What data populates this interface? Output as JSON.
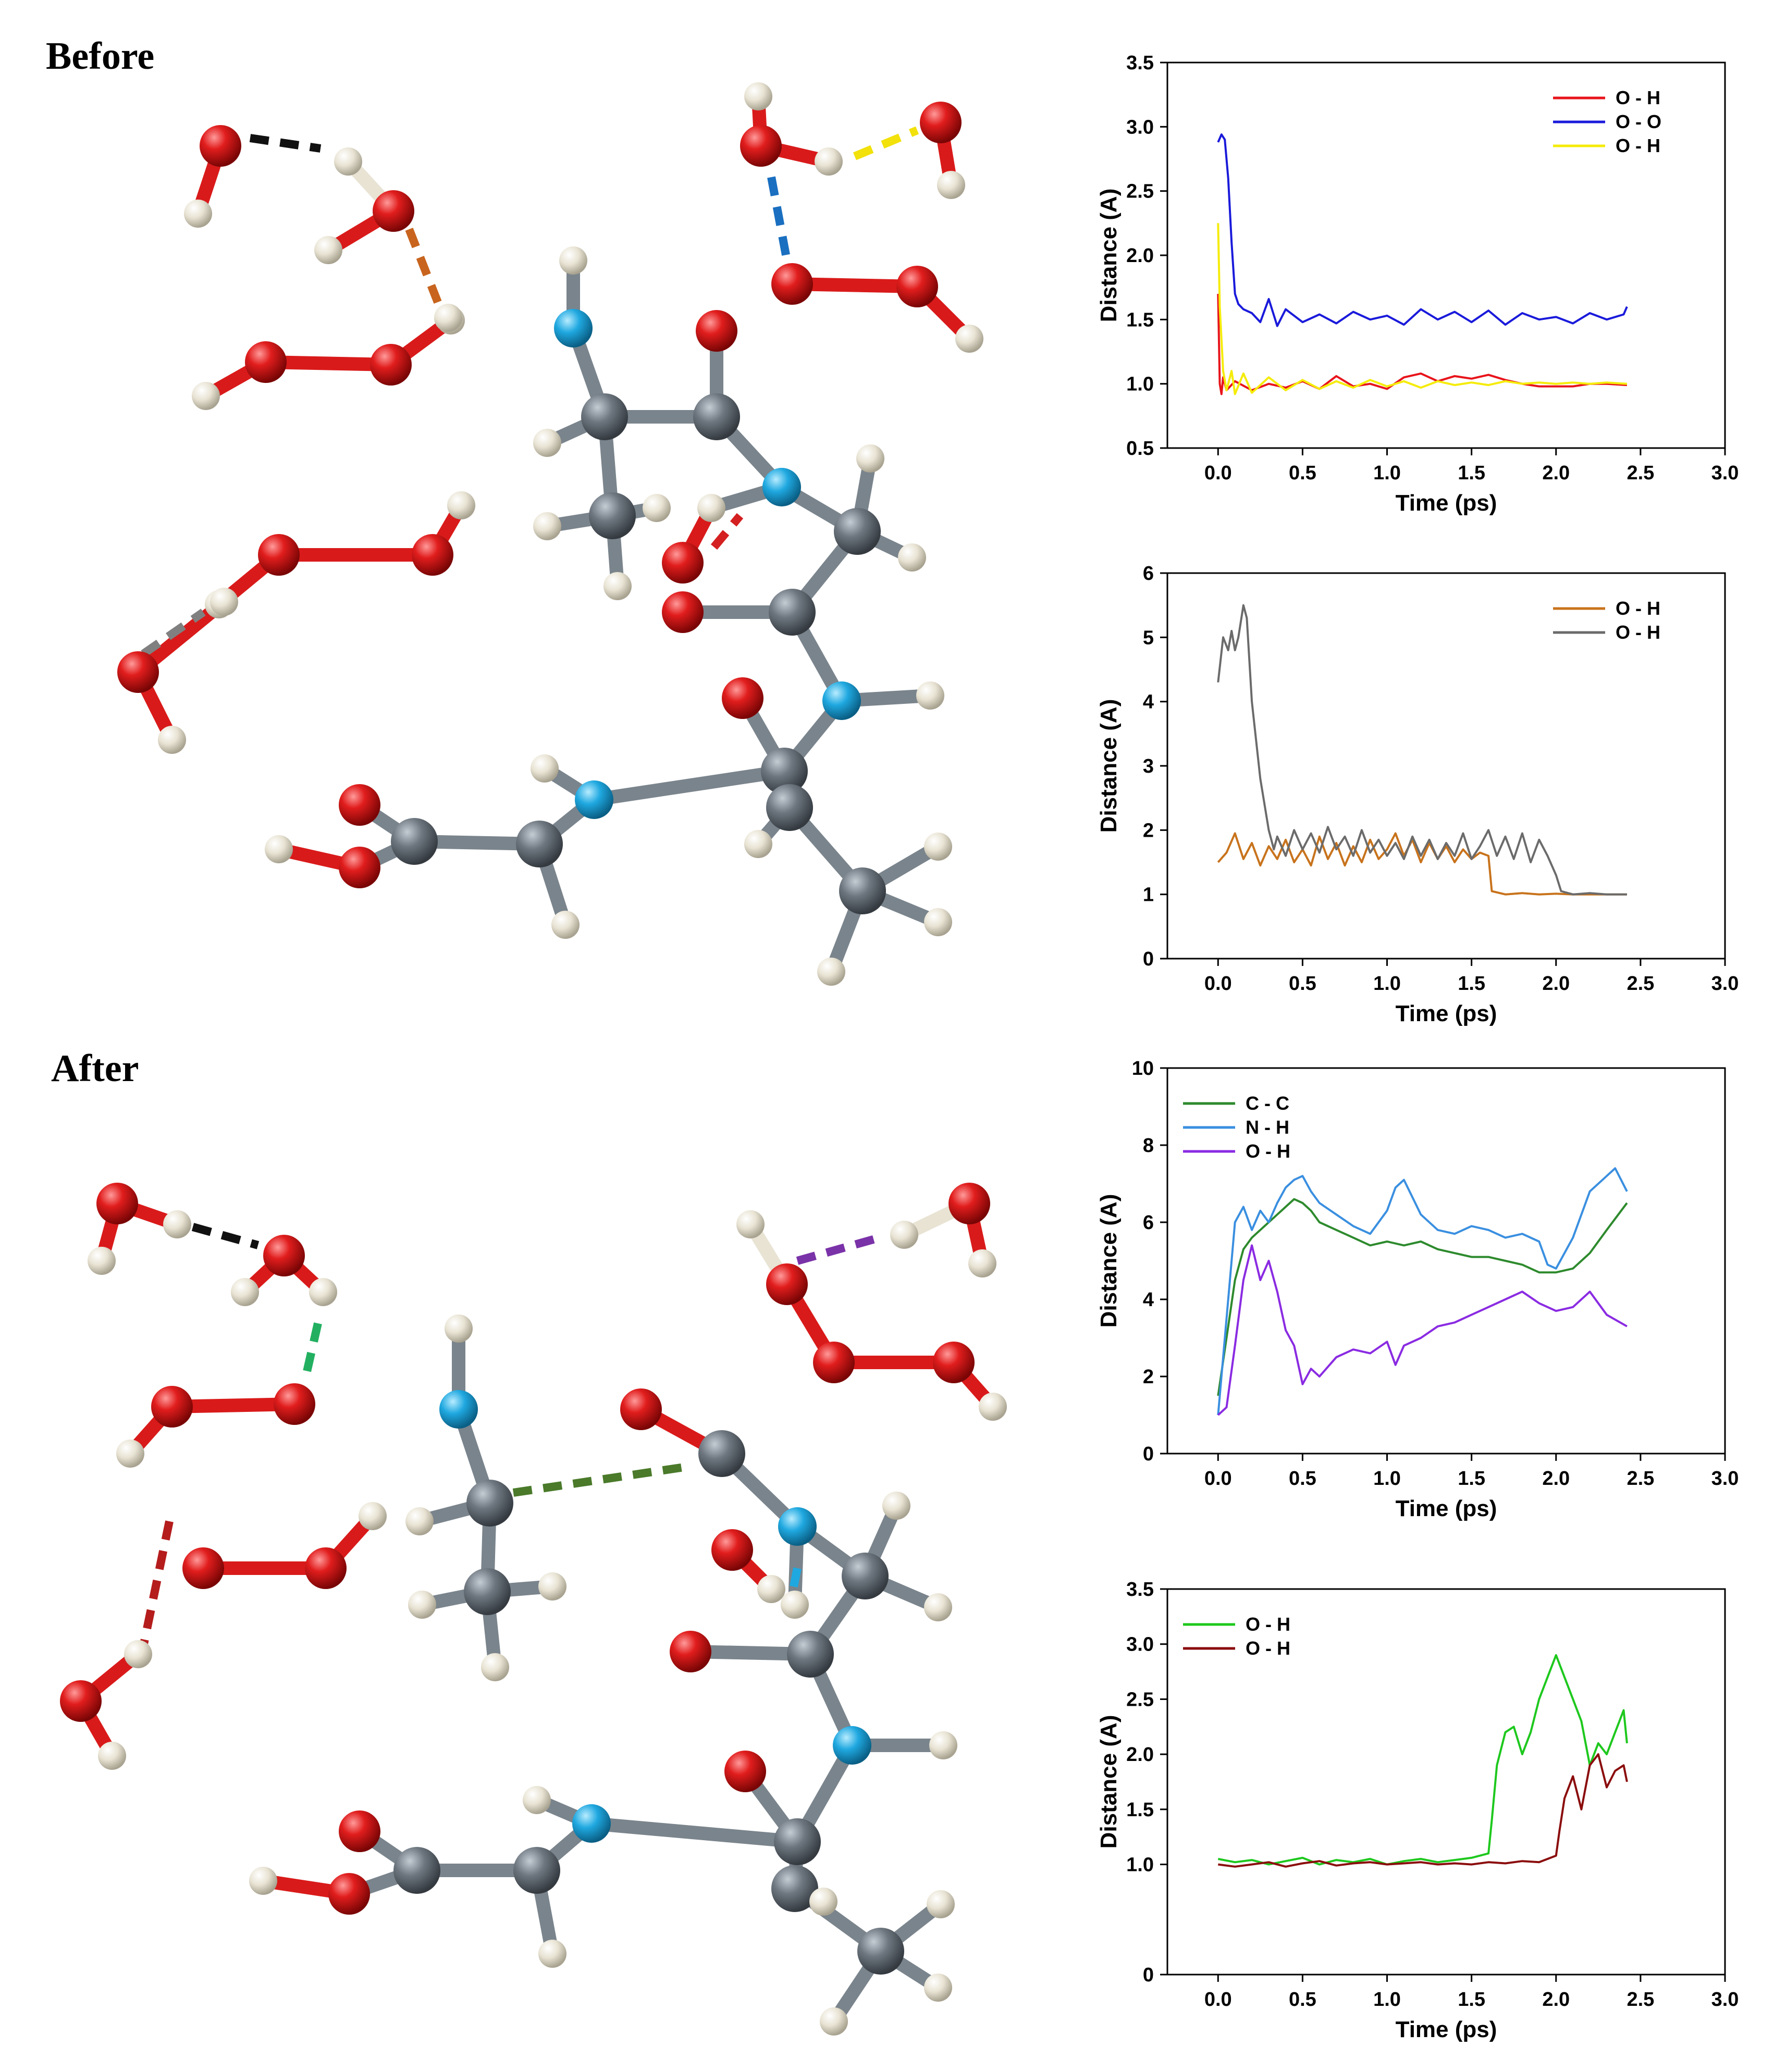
{
  "panels": {
    "before_label": "Before",
    "after_label": "After"
  },
  "atom_colors": {
    "oxygen": "#d91a1a",
    "hydrogen": "#e8e3d3",
    "carbon": "#6e7780",
    "nitrogen": "#1fa8e0",
    "bond": "#7a848c"
  },
  "chart_data": [
    {
      "type": "line",
      "xlabel": "Time (ps)",
      "ylabel": "Distance (A)",
      "xlim": [
        -0.3,
        3.0
      ],
      "ylim": [
        0.5,
        3.5
      ],
      "xticks": [
        "0.0",
        "0.5",
        "1.0",
        "1.5",
        "2.0",
        "2.5",
        "3.0"
      ],
      "yticks": [
        "0.5",
        "1.0",
        "1.5",
        "2.0",
        "2.5",
        "3.0",
        "3.5"
      ],
      "legend_position": "top-right",
      "series": [
        {
          "name": "O - H",
          "color": "#e8141b",
          "x": [
            0.0,
            0.01,
            0.02,
            0.03,
            0.05,
            0.1,
            0.2,
            0.3,
            0.4,
            0.5,
            0.6,
            0.7,
            0.8,
            0.9,
            1.0,
            1.1,
            1.2,
            1.3,
            1.4,
            1.5,
            1.6,
            1.7,
            1.8,
            1.9,
            2.0,
            2.1,
            2.2,
            2.3,
            2.42
          ],
          "y": [
            1.7,
            1.0,
            0.92,
            1.05,
            0.95,
            1.02,
            0.95,
            1.0,
            0.97,
            1.02,
            0.96,
            1.06,
            0.98,
            1.0,
            0.96,
            1.05,
            1.08,
            1.02,
            1.06,
            1.04,
            1.07,
            1.03,
            1.0,
            0.98,
            0.98,
            0.98,
            1.0,
            1.0,
            0.99
          ]
        },
        {
          "name": "O - O",
          "color": "#1a1adb",
          "x": [
            0.0,
            0.02,
            0.04,
            0.06,
            0.08,
            0.1,
            0.12,
            0.15,
            0.2,
            0.25,
            0.3,
            0.35,
            0.4,
            0.5,
            0.6,
            0.7,
            0.8,
            0.9,
            1.0,
            1.1,
            1.2,
            1.3,
            1.4,
            1.5,
            1.6,
            1.7,
            1.8,
            1.9,
            2.0,
            2.1,
            2.2,
            2.3,
            2.4,
            2.42
          ],
          "y": [
            2.88,
            2.94,
            2.9,
            2.6,
            2.1,
            1.7,
            1.62,
            1.58,
            1.55,
            1.48,
            1.66,
            1.45,
            1.58,
            1.48,
            1.54,
            1.47,
            1.56,
            1.5,
            1.53,
            1.46,
            1.58,
            1.5,
            1.56,
            1.48,
            1.57,
            1.46,
            1.55,
            1.5,
            1.52,
            1.47,
            1.55,
            1.5,
            1.54,
            1.6
          ]
        },
        {
          "name": "O - H",
          "color": "#f5ec0a",
          "x": [
            0.0,
            0.01,
            0.03,
            0.05,
            0.08,
            0.1,
            0.15,
            0.2,
            0.3,
            0.4,
            0.5,
            0.6,
            0.7,
            0.8,
            0.9,
            1.0,
            1.1,
            1.2,
            1.3,
            1.4,
            1.5,
            1.6,
            1.7,
            1.8,
            1.9,
            2.0,
            2.1,
            2.2,
            2.3,
            2.42
          ],
          "y": [
            2.25,
            1.6,
            1.1,
            0.95,
            1.1,
            0.92,
            1.08,
            0.93,
            1.05,
            0.95,
            1.03,
            0.96,
            1.02,
            0.97,
            1.03,
            0.98,
            1.02,
            0.97,
            1.02,
            0.99,
            1.01,
            0.99,
            1.02,
            1.0,
            1.01,
            1.0,
            1.01,
            1.0,
            1.01,
            1.0
          ]
        }
      ]
    },
    {
      "type": "line",
      "xlabel": "Time (ps)",
      "ylabel": "Distance (A)",
      "xlim": [
        -0.3,
        3.0
      ],
      "ylim": [
        0,
        6
      ],
      "xticks": [
        "0.0",
        "0.5",
        "1.0",
        "1.5",
        "2.0",
        "2.5",
        "3.0"
      ],
      "yticks": [
        "0",
        "1",
        "2",
        "3",
        "4",
        "5",
        "6"
      ],
      "legend_position": "top-right",
      "series": [
        {
          "name": "O - H",
          "color": "#c8731c",
          "x": [
            0.0,
            0.05,
            0.1,
            0.15,
            0.2,
            0.25,
            0.3,
            0.35,
            0.4,
            0.45,
            0.5,
            0.55,
            0.6,
            0.65,
            0.7,
            0.75,
            0.8,
            0.85,
            0.9,
            0.95,
            1.0,
            1.05,
            1.1,
            1.15,
            1.2,
            1.25,
            1.3,
            1.35,
            1.4,
            1.45,
            1.5,
            1.55,
            1.6,
            1.62,
            1.7,
            1.8,
            1.9,
            2.0,
            2.1,
            2.2,
            2.3,
            2.42
          ],
          "y": [
            1.5,
            1.65,
            1.95,
            1.55,
            1.8,
            1.45,
            1.75,
            1.55,
            1.85,
            1.5,
            1.7,
            1.45,
            1.9,
            1.55,
            1.8,
            1.45,
            1.75,
            1.5,
            1.85,
            1.55,
            1.7,
            1.95,
            1.6,
            1.85,
            1.5,
            1.8,
            1.55,
            1.75,
            1.5,
            1.7,
            1.55,
            1.65,
            1.6,
            1.05,
            1.0,
            1.02,
            1.0,
            1.01,
            1.0,
            1.0,
            1.0,
            1.0
          ]
        },
        {
          "name": "O - H",
          "color": "#6b6b6b",
          "x": [
            0.0,
            0.03,
            0.06,
            0.08,
            0.1,
            0.12,
            0.15,
            0.17,
            0.2,
            0.25,
            0.3,
            0.33,
            0.35,
            0.4,
            0.45,
            0.5,
            0.55,
            0.6,
            0.65,
            0.7,
            0.75,
            0.8,
            0.85,
            0.9,
            0.95,
            1.0,
            1.05,
            1.1,
            1.15,
            1.2,
            1.25,
            1.3,
            1.35,
            1.4,
            1.45,
            1.5,
            1.55,
            1.6,
            1.65,
            1.7,
            1.75,
            1.8,
            1.85,
            1.9,
            1.95,
            2.0,
            2.03,
            2.1,
            2.2,
            2.3,
            2.42
          ],
          "y": [
            4.3,
            5.0,
            4.8,
            5.1,
            4.8,
            5.0,
            5.5,
            5.3,
            4.0,
            2.8,
            2.0,
            1.7,
            1.9,
            1.6,
            2.0,
            1.7,
            1.95,
            1.65,
            2.05,
            1.7,
            1.9,
            1.6,
            2.0,
            1.65,
            1.85,
            1.6,
            1.8,
            1.55,
            1.9,
            1.6,
            1.85,
            1.55,
            1.8,
            1.6,
            1.95,
            1.55,
            1.75,
            2.0,
            1.6,
            1.9,
            1.55,
            1.95,
            1.5,
            1.85,
            1.6,
            1.3,
            1.05,
            1.0,
            1.02,
            1.0,
            1.0
          ]
        }
      ]
    },
    {
      "type": "line",
      "xlabel": "Time (ps)",
      "ylabel": "Distance (A)",
      "xlim": [
        -0.3,
        3.0
      ],
      "ylim": [
        0,
        10
      ],
      "xticks": [
        "0.0",
        "0.5",
        "1.0",
        "1.5",
        "2.0",
        "2.5",
        "3.0"
      ],
      "yticks": [
        "0",
        "2",
        "4",
        "6",
        "8",
        "10"
      ],
      "legend_position": "top-left",
      "series": [
        {
          "name": "C - C",
          "color": "#2d8a2d",
          "x": [
            0.0,
            0.05,
            0.1,
            0.15,
            0.2,
            0.25,
            0.3,
            0.35,
            0.4,
            0.45,
            0.5,
            0.55,
            0.6,
            0.7,
            0.8,
            0.9,
            1.0,
            1.1,
            1.2,
            1.3,
            1.4,
            1.5,
            1.6,
            1.7,
            1.8,
            1.9,
            2.0,
            2.1,
            2.2,
            2.3,
            2.42
          ],
          "y": [
            1.5,
            3.0,
            4.5,
            5.3,
            5.6,
            5.8,
            6.0,
            6.2,
            6.4,
            6.6,
            6.5,
            6.3,
            6.0,
            5.8,
            5.6,
            5.4,
            5.5,
            5.4,
            5.5,
            5.3,
            5.2,
            5.1,
            5.1,
            5.0,
            4.9,
            4.7,
            4.7,
            4.8,
            5.2,
            5.8,
            6.5
          ]
        },
        {
          "name": "N - H",
          "color": "#3a8fe0",
          "x": [
            0.0,
            0.05,
            0.1,
            0.15,
            0.2,
            0.25,
            0.3,
            0.35,
            0.4,
            0.45,
            0.5,
            0.55,
            0.6,
            0.7,
            0.8,
            0.9,
            1.0,
            1.05,
            1.1,
            1.2,
            1.3,
            1.4,
            1.5,
            1.6,
            1.7,
            1.8,
            1.9,
            1.95,
            2.0,
            2.1,
            2.2,
            2.3,
            2.35,
            2.42
          ],
          "y": [
            1.0,
            3.5,
            6.0,
            6.4,
            5.8,
            6.3,
            6.0,
            6.5,
            6.9,
            7.1,
            7.2,
            6.8,
            6.5,
            6.2,
            5.9,
            5.7,
            6.3,
            6.9,
            7.1,
            6.2,
            5.8,
            5.7,
            5.9,
            5.8,
            5.6,
            5.7,
            5.5,
            4.9,
            4.8,
            5.6,
            6.8,
            7.2,
            7.4,
            6.8
          ]
        },
        {
          "name": "O - H",
          "color": "#8a2be2",
          "x": [
            0.0,
            0.05,
            0.1,
            0.15,
            0.2,
            0.25,
            0.3,
            0.35,
            0.4,
            0.45,
            0.5,
            0.55,
            0.6,
            0.7,
            0.8,
            0.9,
            1.0,
            1.05,
            1.1,
            1.2,
            1.3,
            1.4,
            1.5,
            1.6,
            1.7,
            1.8,
            1.9,
            2.0,
            2.1,
            2.2,
            2.3,
            2.42
          ],
          "y": [
            1.0,
            1.2,
            2.8,
            4.5,
            5.4,
            4.5,
            5.0,
            4.2,
            3.2,
            2.8,
            1.8,
            2.2,
            2.0,
            2.5,
            2.7,
            2.6,
            2.9,
            2.3,
            2.8,
            3.0,
            3.3,
            3.4,
            3.6,
            3.8,
            4.0,
            4.2,
            3.9,
            3.7,
            3.8,
            4.2,
            3.6,
            3.3
          ]
        }
      ]
    },
    {
      "type": "line",
      "xlabel": "Time (ps)",
      "ylabel": "Distance (A)",
      "xlim": [
        -0.3,
        3.0
      ],
      "ylim": [
        0,
        3.5
      ],
      "xticks": [
        "0.0",
        "0.5",
        "1.0",
        "1.5",
        "2.0",
        "2.5",
        "3.0"
      ],
      "yticks": [
        "0",
        "1.0",
        "1.5",
        "2.0",
        "2.5",
        "3.0",
        "3.5"
      ],
      "ytick_values": [
        0,
        1.0,
        1.5,
        2.0,
        2.5,
        3.0,
        3.5
      ],
      "legend_position": "top-left",
      "series": [
        {
          "name": "O - H",
          "color": "#1ec81e",
          "x": [
            0.0,
            0.1,
            0.2,
            0.3,
            0.4,
            0.5,
            0.6,
            0.7,
            0.8,
            0.9,
            1.0,
            1.1,
            1.2,
            1.3,
            1.4,
            1.5,
            1.6,
            1.62,
            1.65,
            1.7,
            1.75,
            1.8,
            1.85,
            1.9,
            1.95,
            2.0,
            2.05,
            2.1,
            2.15,
            2.2,
            2.25,
            2.3,
            2.35,
            2.4,
            2.42
          ],
          "y": [
            1.05,
            1.02,
            1.04,
            1.0,
            1.03,
            1.06,
            1.0,
            1.04,
            1.02,
            1.05,
            1.0,
            1.03,
            1.05,
            1.02,
            1.04,
            1.06,
            1.1,
            1.4,
            1.9,
            2.2,
            2.25,
            2.0,
            2.2,
            2.5,
            2.7,
            2.9,
            2.7,
            2.5,
            2.3,
            1.9,
            2.1,
            2.0,
            2.2,
            2.4,
            2.1
          ]
        },
        {
          "name": "O - H",
          "color": "#8b0d0d",
          "x": [
            0.0,
            0.1,
            0.2,
            0.3,
            0.4,
            0.5,
            0.6,
            0.7,
            0.8,
            0.9,
            1.0,
            1.1,
            1.2,
            1.3,
            1.4,
            1.5,
            1.6,
            1.7,
            1.8,
            1.9,
            2.0,
            2.02,
            2.05,
            2.1,
            2.15,
            2.2,
            2.25,
            2.3,
            2.35,
            2.4,
            2.42
          ],
          "y": [
            1.0,
            0.98,
            1.0,
            1.02,
            0.98,
            1.01,
            1.03,
            0.99,
            1.01,
            1.02,
            1.0,
            1.01,
            1.02,
            1.0,
            1.01,
            1.0,
            1.02,
            1.01,
            1.03,
            1.02,
            1.08,
            1.3,
            1.6,
            1.8,
            1.5,
            1.9,
            2.0,
            1.7,
            1.85,
            1.9,
            1.75
          ]
        }
      ]
    }
  ]
}
